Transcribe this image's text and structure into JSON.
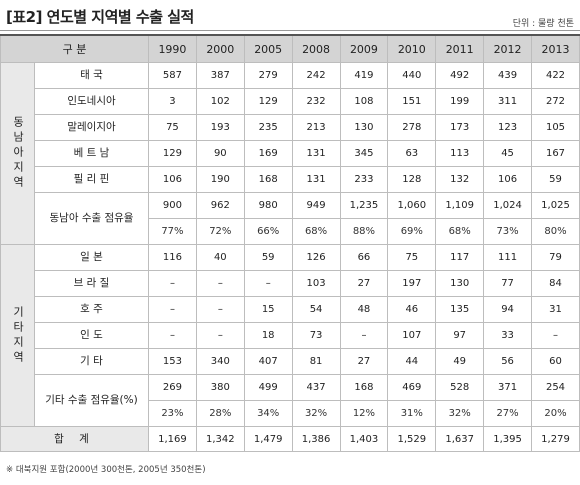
{
  "header": {
    "title": "[표2] 연도별 지역별 수출 실적",
    "unit": "단위 : 물량 천톤"
  },
  "table": {
    "corner": "구 분",
    "columns": [
      "1990",
      "2000",
      "2005",
      "2008",
      "2009",
      "2010",
      "2011",
      "2012",
      "2013"
    ],
    "groups": [
      {
        "name": "동남아지역",
        "rows": [
          {
            "label": "태 국",
            "values": [
              "587",
              "387",
              "279",
              "242",
              "419",
              "440",
              "492",
              "439",
              "422"
            ]
          },
          {
            "label": "인도네시아",
            "values": [
              "3",
              "102",
              "129",
              "232",
              "108",
              "151",
              "199",
              "311",
              "272"
            ]
          },
          {
            "label": "말레이지아",
            "values": [
              "75",
              "193",
              "235",
              "213",
              "130",
              "278",
              "173",
              "123",
              "105"
            ]
          },
          {
            "label": "베 트 남",
            "values": [
              "129",
              "90",
              "169",
              "131",
              "345",
              "63",
              "113",
              "45",
              "167"
            ]
          },
          {
            "label": "필 리 핀",
            "values": [
              "106",
              "190",
              "168",
              "131",
              "233",
              "128",
              "132",
              "106",
              "59"
            ]
          }
        ],
        "share": {
          "label": "동남아 수출 점유율",
          "values": [
            "900",
            "962",
            "980",
            "949",
            "1,235",
            "1,060",
            "1,109",
            "1,024",
            "1,025"
          ],
          "percents": [
            "77%",
            "72%",
            "66%",
            "68%",
            "88%",
            "69%",
            "68%",
            "73%",
            "80%"
          ]
        }
      },
      {
        "name": "기타지역",
        "rows": [
          {
            "label": "일 본",
            "values": [
              "116",
              "40",
              "59",
              "126",
              "66",
              "75",
              "117",
              "111",
              "79"
            ]
          },
          {
            "label": "브 라 질",
            "values": [
              "–",
              "–",
              "–",
              "103",
              "27",
              "197",
              "130",
              "77",
              "84"
            ]
          },
          {
            "label": "호 주",
            "values": [
              "–",
              "–",
              "15",
              "54",
              "48",
              "46",
              "135",
              "94",
              "31"
            ]
          },
          {
            "label": "인 도",
            "values": [
              "–",
              "–",
              "18",
              "73",
              "–",
              "107",
              "97",
              "33",
              "–"
            ]
          },
          {
            "label": "기 타",
            "values": [
              "153",
              "340",
              "407",
              "81",
              "27",
              "44",
              "49",
              "56",
              "60"
            ]
          }
        ],
        "share": {
          "label": "기타 수출 점유율(%)",
          "values": [
            "269",
            "380",
            "499",
            "437",
            "168",
            "469",
            "528",
            "371",
            "254"
          ],
          "percents": [
            "23%",
            "28%",
            "34%",
            "32%",
            "12%",
            "31%",
            "32%",
            "27%",
            "20%"
          ]
        }
      }
    ],
    "total": {
      "label": "합 계",
      "values": [
        "1,169",
        "1,342",
        "1,479",
        "1,386",
        "1,403",
        "1,529",
        "1,637",
        "1,395",
        "1,279"
      ]
    }
  },
  "footnote": "※ 대북지원 포함(2000년 300천톤, 2005년 350천톤)"
}
